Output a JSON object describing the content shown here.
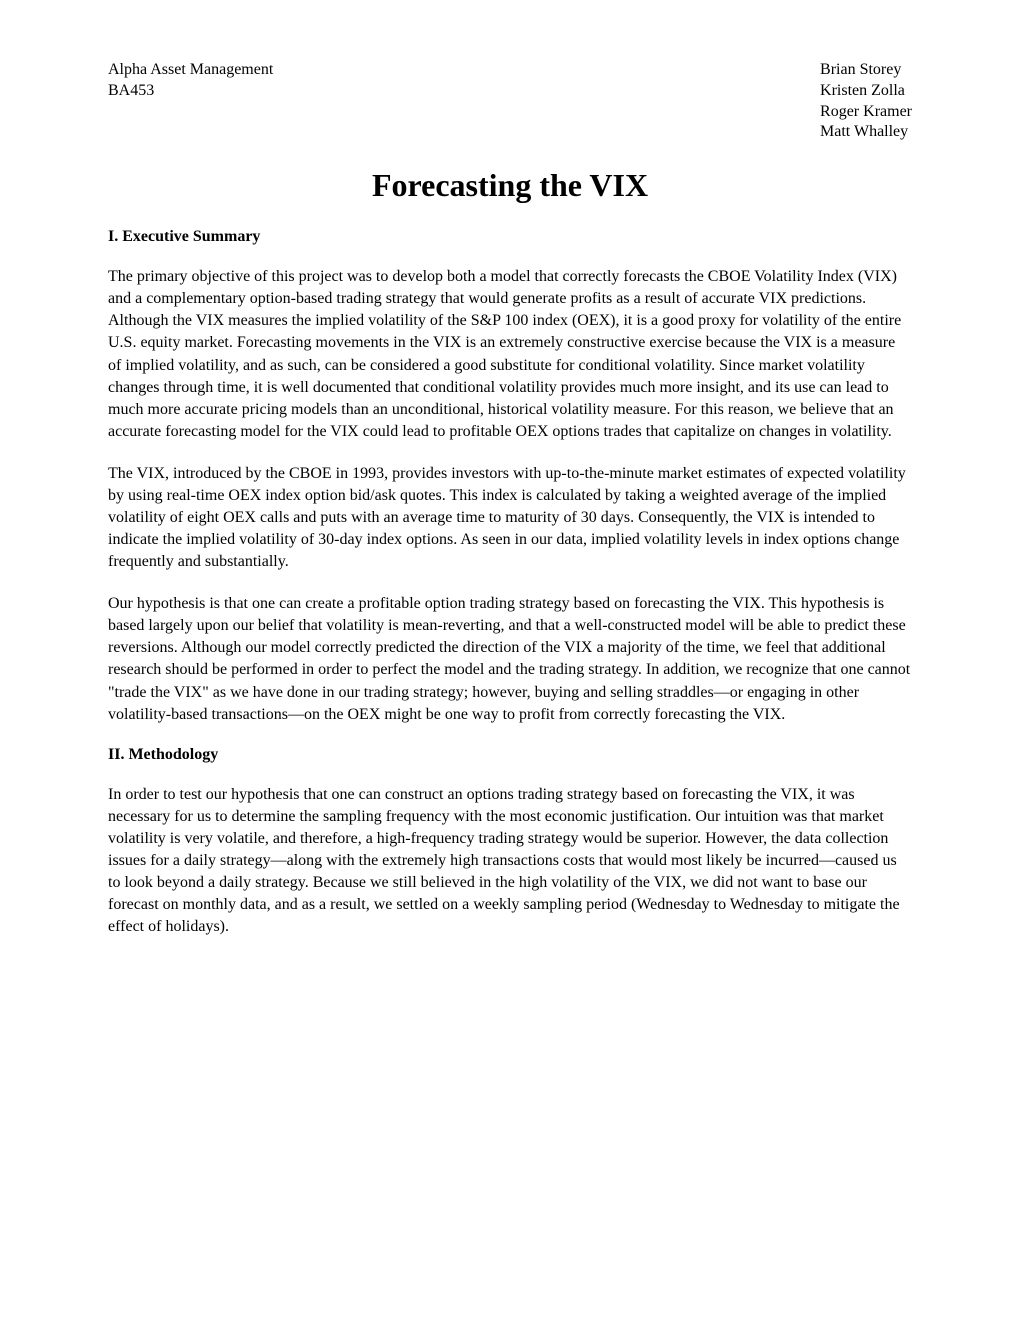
{
  "header": {
    "left": {
      "line1": "Alpha Asset Management",
      "line2": "BA453"
    },
    "right": {
      "name1": "Brian Storey",
      "name2": "Kristen Zolla",
      "name3": "Roger Kramer",
      "name4": "Matt Whalley"
    }
  },
  "title": "Forecasting the VIX",
  "sections": {
    "executive_summary": {
      "heading": "I. Executive Summary",
      "para1": "The primary objective of this project was to develop both a model that correctly forecasts the CBOE Volatility Index (VIX) and a complementary option-based trading strategy that would generate profits as a result of accurate VIX predictions.  Although the VIX measures the implied volatility of the S&P 100 index (OEX), it is a good proxy for volatility of the entire U.S. equity market.  Forecasting movements in the VIX is an extremely constructive exercise because the VIX is a measure of implied volatility, and as such, can be considered a good substitute for conditional volatility.  Since market volatility changes through time, it is well documented that conditional volatility provides much more insight, and its use can lead to much more accurate pricing models than an unconditional, historical volatility measure.  For this reason, we believe that an accurate forecasting model for the VIX could lead to profitable OEX options trades that capitalize on changes in volatility.",
      "para2": "The VIX, introduced by the CBOE in 1993, provides investors with up-to-the-minute market estimates of expected volatility by using real-time OEX index option bid/ask quotes.  This index is calculated by taking a weighted average of the implied volatility of eight OEX calls and puts with an average time to maturity of 30 days.  Consequently, the VIX is intended to indicate the implied volatility of 30-day index options.  As seen in our data, implied volatility levels in index options change frequently and substantially.",
      "para3": "Our hypothesis is that one can create a profitable option trading strategy based on forecasting the VIX.  This hypothesis is based largely upon our belief that volatility is mean-reverting, and that a well-constructed model will be able to predict these reversions.  Although our model correctly predicted the direction of the VIX a majority of the time, we feel that additional research should be performed in order to perfect the model and the trading strategy.  In addition, we recognize that one cannot \"trade the VIX\" as we have done in our trading strategy; however, buying and selling straddles—or engaging in other volatility-based transactions—on the OEX might be one way to profit from correctly forecasting the VIX."
    },
    "methodology": {
      "heading": "II. Methodology",
      "para1": "In order to test our hypothesis that one can construct an options trading strategy based on forecasting the VIX, it was necessary for us to determine the sampling frequency with the most economic justification.  Our intuition was that market volatility is very volatile, and therefore, a high-frequency trading strategy would be superior.  However, the data collection issues for a daily strategy—along with the extremely high transactions costs that would most likely be incurred—caused us to look beyond a daily strategy.  Because we still believed in the high volatility of the VIX, we did not want to base our forecast on monthly data, and as a result, we settled on a weekly sampling period (Wednesday to Wednesday to mitigate the effect of holidays)."
    }
  }
}
